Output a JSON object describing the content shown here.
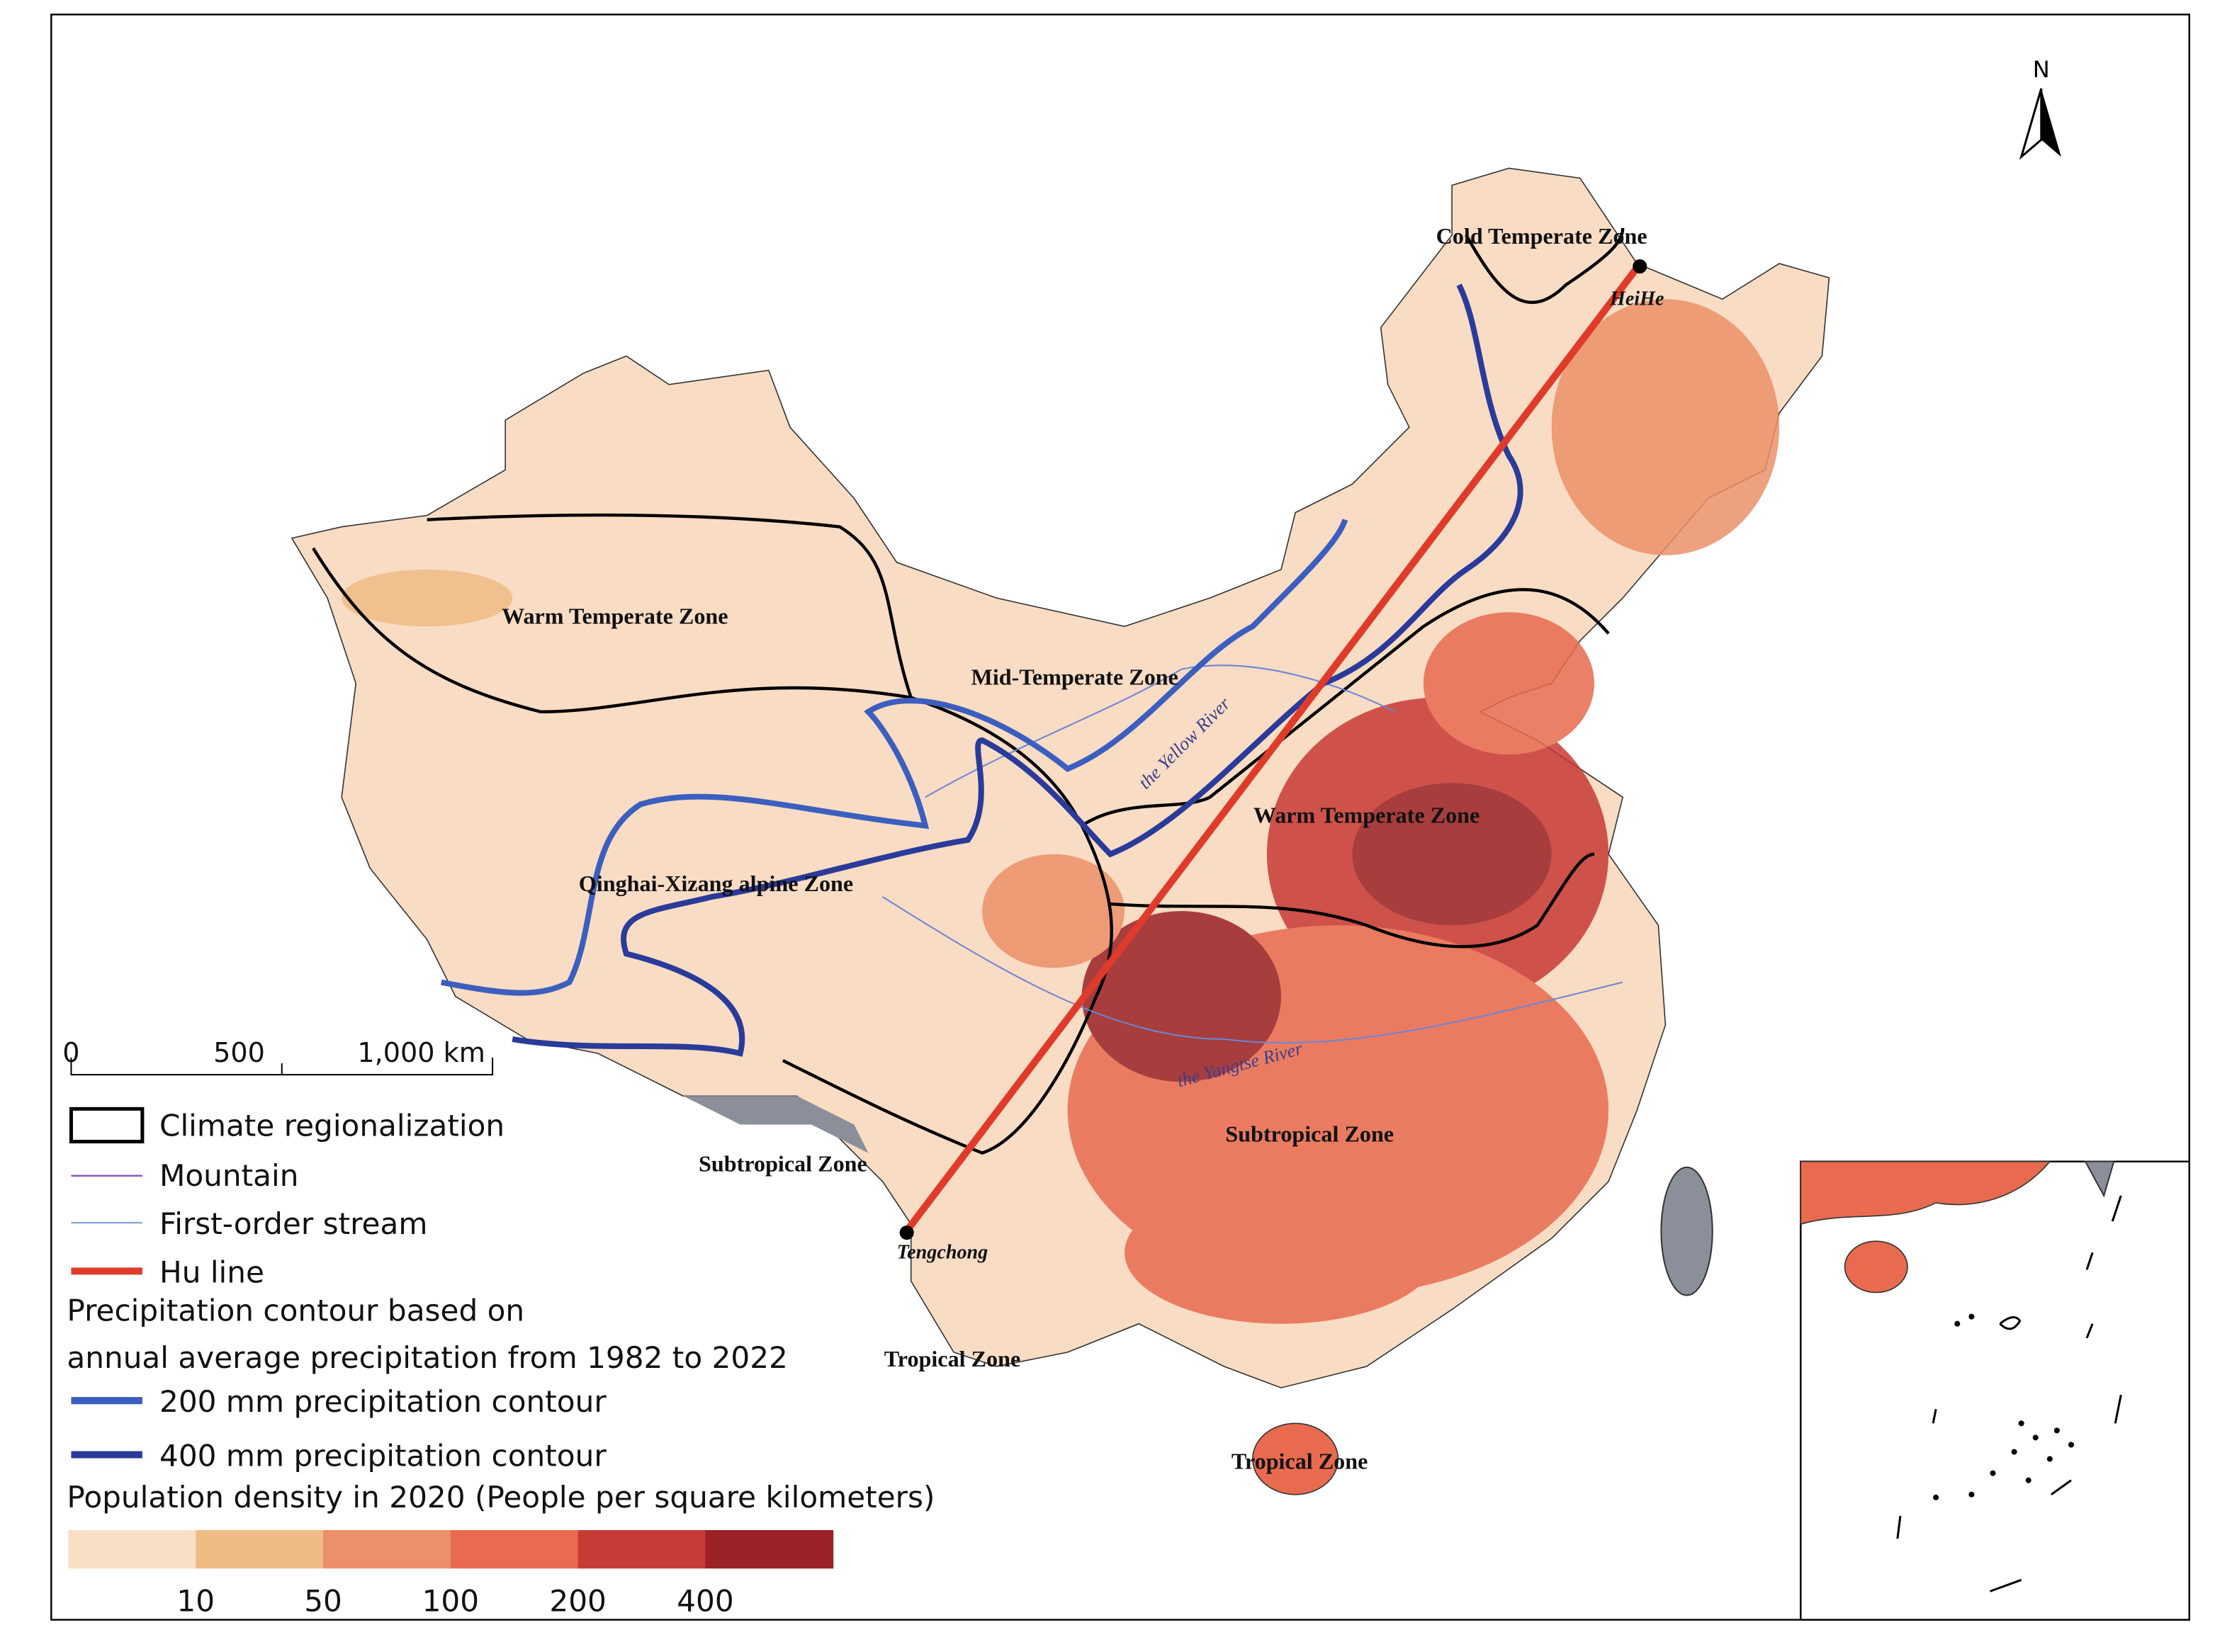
{
  "north_arrow": "N",
  "scale_bar": {
    "labels": [
      "0",
      "500",
      "1,000 km"
    ]
  },
  "zone_labels": [
    "Cold Temperate Zone",
    "Warm Temperate Zone",
    "Mid-Temperate Zone",
    "Warm Temperate Zone",
    "Qinghai-Xizang alpine Zone",
    "Subtropical Zone",
    "Subtropical Zone",
    "Tropical Zone",
    "Tropical Zone"
  ],
  "place_labels": [
    "HeiHe",
    "Tengchong"
  ],
  "river_labels": [
    "the Yellow River",
    "the Yangtse River"
  ],
  "legend": {
    "items": [
      "Climate regionalization",
      "Mountain",
      "First-order stream",
      "Hu line"
    ],
    "precipitation_title": [
      "Precipitation contour based on",
      "annual average precipitation from 1982 to 2022"
    ],
    "contours": [
      "200 mm precipitation contour",
      "400 mm precipitation contour"
    ],
    "density_title": "Population density in 2020 (People per square kilometers)",
    "density_colors": [
      "#f9dfc6",
      "#efbb85",
      "#eb9068",
      "#e86b50",
      "#c83a35",
      "#9b2227"
    ],
    "density_breaks": [
      "10",
      "50",
      "100",
      "200",
      "400"
    ]
  }
}
